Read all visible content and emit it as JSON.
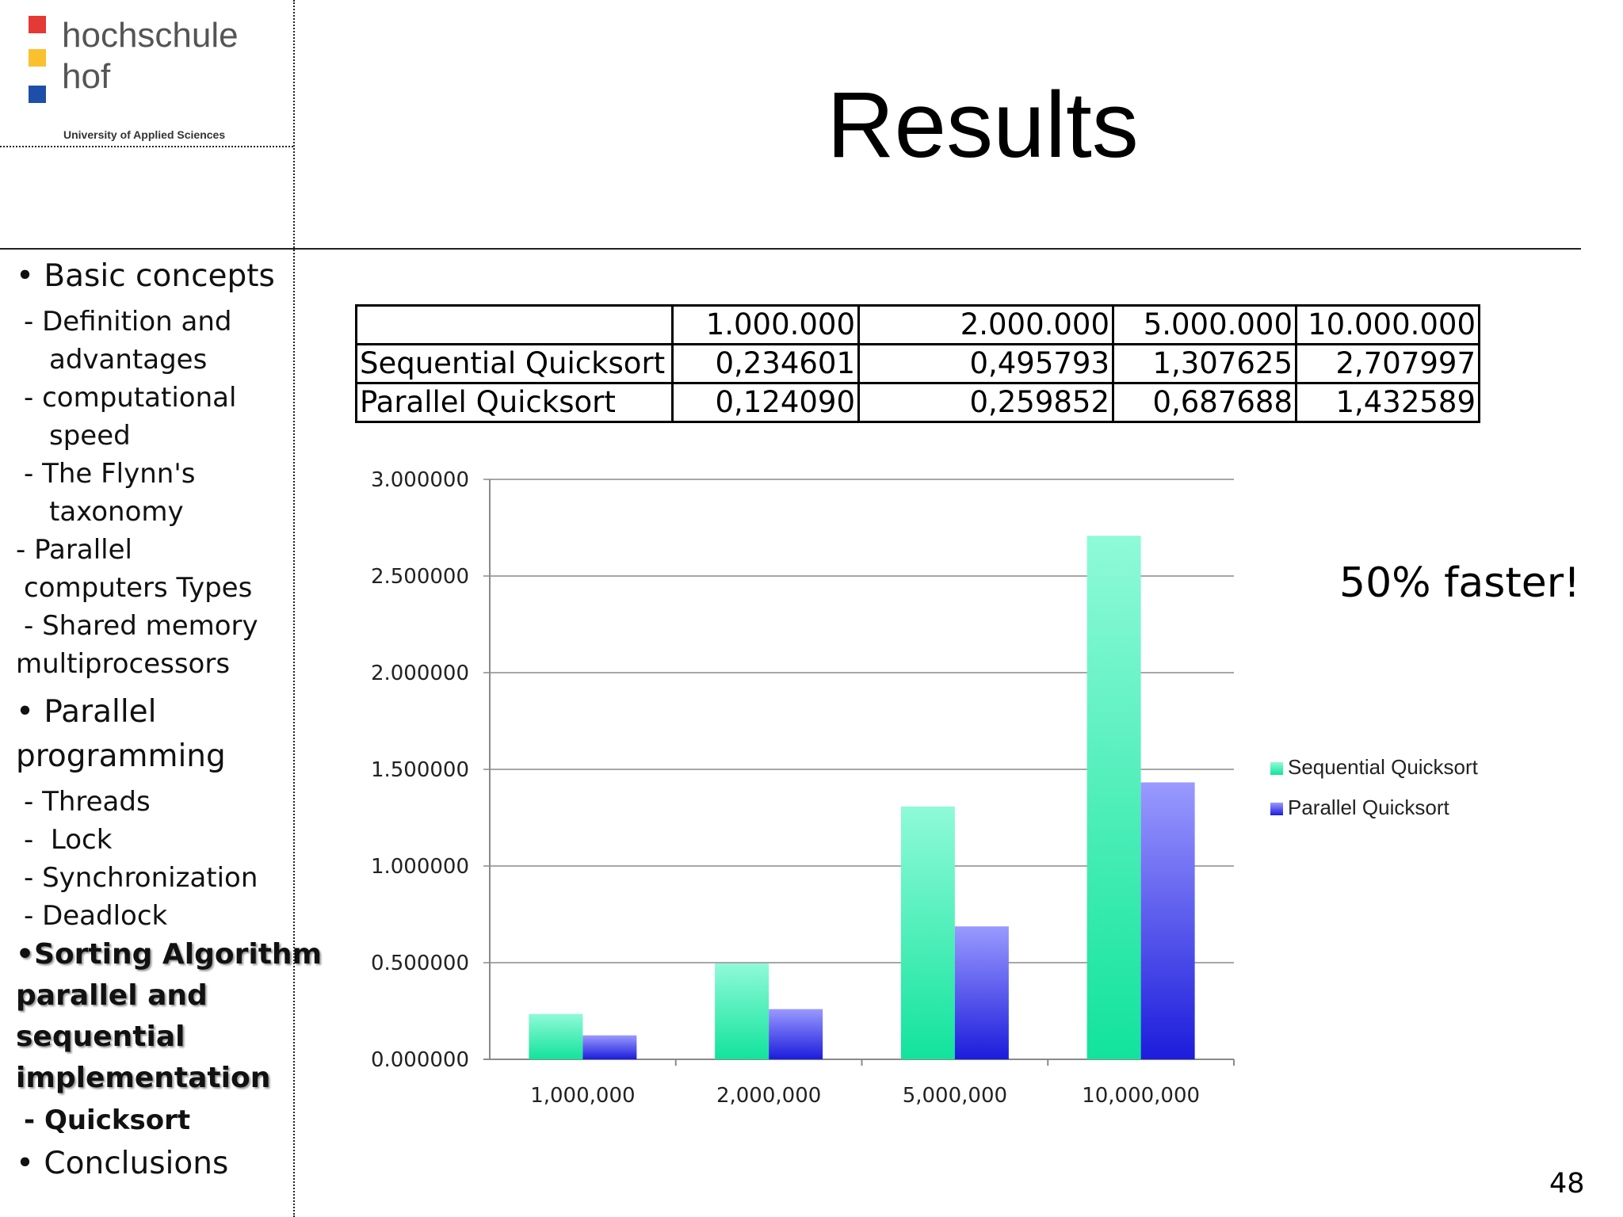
{
  "logo": {
    "line1": "hochschule",
    "line2": "hof",
    "subtitle": "University of Applied Sciences",
    "colors": [
      "#e53935",
      "#fbc02d",
      "#1e4fa8"
    ]
  },
  "title": "Results",
  "sidebar": {
    "items": [
      "• Basic concepts",
      "- Definition and",
      "advantages",
      "- computational",
      "speed",
      "- The Flynn's",
      "taxonomy",
      "- Parallel",
      "computers Types",
      "- Shared memory",
      "multiprocessors",
      "• Parallel",
      "programming",
      "- Threads",
      "-  Lock",
      "- Synchronization",
      "- Deadlock",
      "•Sorting Algorithm",
      "parallel and",
      "sequential",
      "implementation",
      "- Quicksort",
      "• Conclusions"
    ]
  },
  "table": {
    "header": [
      "",
      "1.000.000",
      "2.000.000",
      "5.000.000",
      "10.000.000"
    ],
    "rows": [
      [
        "Sequential Quicksort",
        "0,234601",
        "0,495793",
        "1,307625",
        "2,707997"
      ],
      [
        "Parallel Quicksort",
        "0,124090",
        "0,259852",
        "0,687688",
        "1,432589"
      ]
    ]
  },
  "callout": "50% faster!",
  "page_number": "48",
  "chart_data": {
    "type": "bar",
    "categories": [
      "1,000,000",
      "2,000,000",
      "5,000,000",
      "10,000,000"
    ],
    "series": [
      {
        "name": "Sequential Quicksort",
        "values": [
          0.234601,
          0.495793,
          1.307625,
          2.707997
        ],
        "color_top": "#8ffad8",
        "color_bottom": "#12e39c"
      },
      {
        "name": "Parallel Quicksort",
        "values": [
          0.12409,
          0.259852,
          0.687688,
          1.432589
        ],
        "color_top": "#9a9aff",
        "color_bottom": "#1c1cdc"
      }
    ],
    "ylim": [
      0,
      3
    ],
    "yticks": [
      "0.000000",
      "0.500000",
      "1.000000",
      "1.500000",
      "2.000000",
      "2.500000",
      "3.000000"
    ],
    "grid": true,
    "legend": "right"
  }
}
